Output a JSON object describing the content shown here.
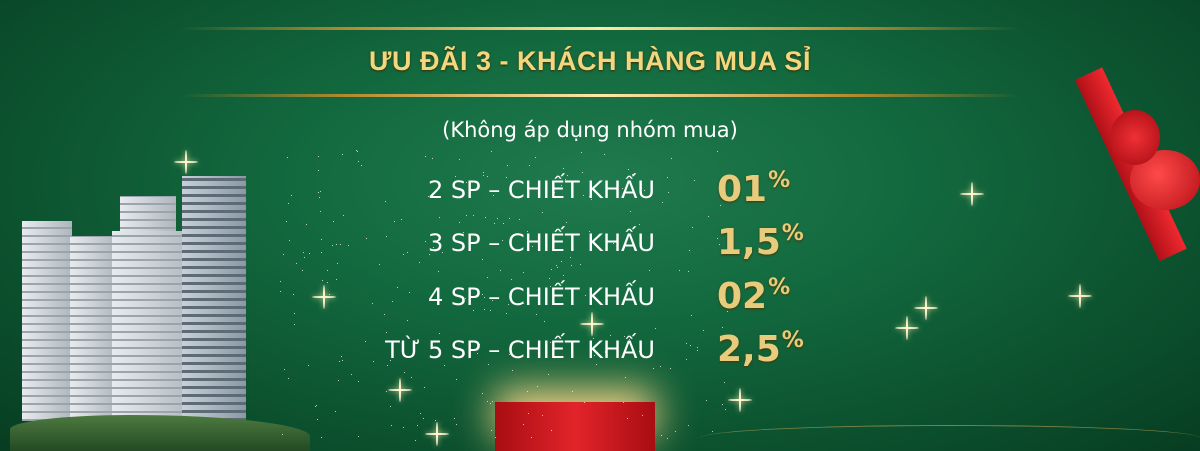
{
  "title": "ƯU ĐÃI 3 - KHÁCH HÀNG MUA SỈ",
  "subtitle": "(Không áp dụng nhóm mua)",
  "tiers": [
    {
      "label": "2 SP – CHIẾT KHẤU",
      "value": "01",
      "unit": "%"
    },
    {
      "label": "3 SP – CHIẾT KHẤU",
      "value": "1,5",
      "unit": "%"
    },
    {
      "label": "4 SP – CHIẾT KHẤU",
      "value": "02",
      "unit": "%"
    },
    {
      "label": "TỪ 5 SP – CHIẾT KHẤU",
      "value": "2,5",
      "unit": "%"
    }
  ],
  "colors": {
    "background": "#136a3f",
    "gold": "#e6cc7c",
    "ribbon": "#d4141c"
  }
}
